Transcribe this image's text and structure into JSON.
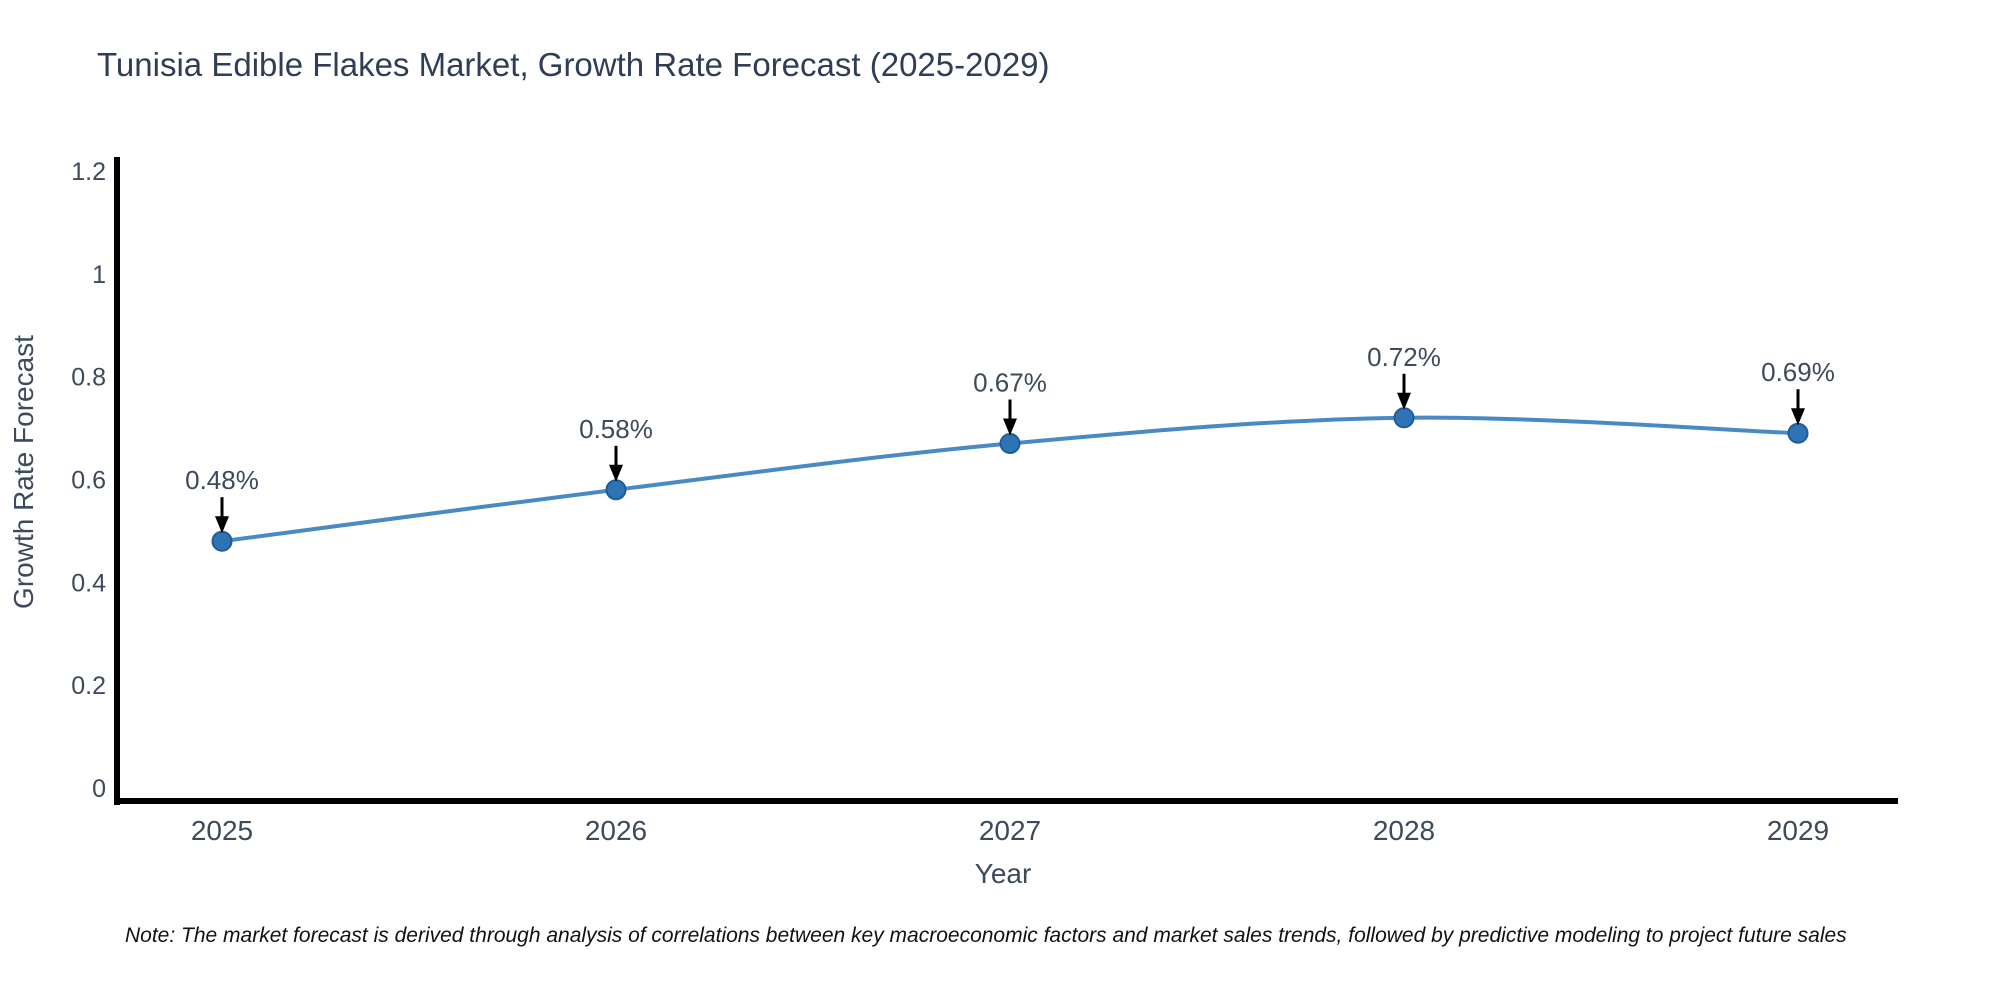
{
  "page": {
    "background": "#ffffff"
  },
  "title": {
    "text": "Tunisia Edible Flakes Market, Growth Rate Forecast (2025-2029)"
  },
  "note": {
    "text": "Note: The market forecast is derived through analysis of correlations between key macroeconomic factors and market sales trends, followed by predictive modeling to project future sales"
  },
  "chart_data": {
    "type": "line",
    "title": "Tunisia Edible Flakes Market, Growth Rate Forecast (2025-2029)",
    "xlabel": "Year",
    "ylabel": "Growth Rate Forecast",
    "categories": [
      "2025",
      "2026",
      "2027",
      "2028",
      "2029"
    ],
    "values": [
      0.48,
      0.58,
      0.67,
      0.72,
      0.69
    ],
    "point_labels": [
      "0.48%",
      "0.58%",
      "0.67%",
      "0.72%",
      "0.69%"
    ],
    "y_ticks": [
      0,
      0.2,
      0.4,
      0.6,
      0.8,
      1,
      1.2
    ],
    "y_tick_labels": [
      "0",
      "0.2",
      "0.4",
      "0.6",
      "0.8",
      "1",
      "1.2"
    ],
    "ylim": [
      0,
      1.2
    ],
    "grid": false,
    "legend": "none",
    "smooth": true,
    "colors": {
      "line": "#4a8ac4",
      "marker_fill": "#2e74b5",
      "marker_edge": "#1f5c99",
      "axis": "#000000",
      "tick_label": "#3d4a5c",
      "annotation_text": "#3d4a5c",
      "annotation_arrow": "#000000",
      "title": "#2f3e56"
    }
  }
}
